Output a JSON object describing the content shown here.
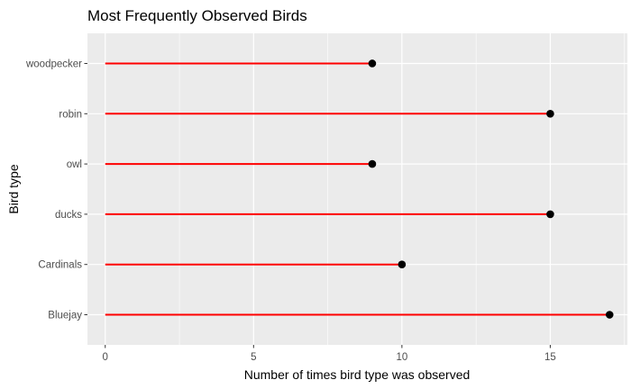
{
  "chart_data": {
    "type": "lollipop",
    "title": "Most Frequently Observed Birds",
    "xlabel": "Number of times bird type was observed",
    "ylabel": "Bird type",
    "categories": [
      "Bluejay",
      "Cardinals",
      "ducks",
      "owl",
      "robin",
      "woodpecker"
    ],
    "values": [
      17,
      10,
      15,
      9,
      15,
      9
    ],
    "xlim": [
      -0.6,
      17.6
    ],
    "xticks": [
      0,
      5,
      10,
      15
    ],
    "grid": true,
    "colors": {
      "panel": "#ebebeb",
      "grid": "#ffffff",
      "stem": "#ff0000",
      "point": "#000000"
    }
  }
}
